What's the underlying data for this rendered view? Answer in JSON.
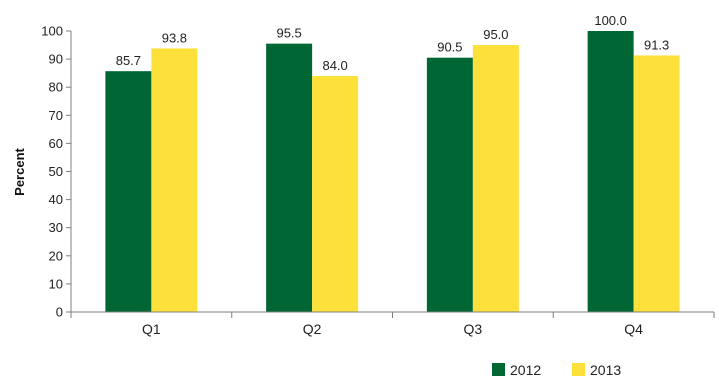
{
  "chart_data": {
    "type": "bar",
    "categories": [
      "Q1",
      "Q2",
      "Q3",
      "Q4"
    ],
    "series": [
      {
        "name": "2012",
        "values": [
          85.7,
          95.5,
          90.5,
          100.0
        ],
        "color": "#006633"
      },
      {
        "name": "2013",
        "values": [
          93.8,
          84.0,
          95.0,
          91.3
        ],
        "color": "#FDE03A"
      }
    ],
    "value_labels": [
      [
        "85.7",
        "95.5",
        "90.5",
        "100.0"
      ],
      [
        "93.8",
        "84.0",
        "95.0",
        "91.3"
      ]
    ],
    "title": "",
    "xlabel": "",
    "ylabel": "Percent",
    "ylim": [
      0,
      100
    ],
    "yticks": [
      0,
      10,
      20,
      30,
      40,
      50,
      60,
      70,
      80,
      90,
      100
    ],
    "grid": false,
    "legend_position": "bottom-right"
  }
}
